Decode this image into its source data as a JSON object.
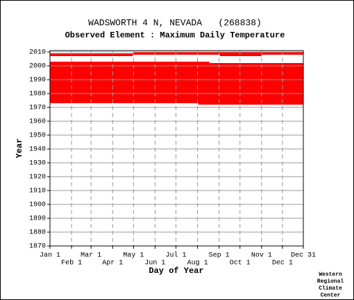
{
  "chart_data": {
    "type": "availability",
    "title": "WADSWORTH 4 N, NEVADA   (268838)",
    "subtitle": "Observed Element : Maximum Daily Temperature",
    "x_label": "Day of Year",
    "y_label": "Year",
    "credit": [
      "Western",
      "Regional",
      "Climate",
      "Center"
    ],
    "color": "#ff0000",
    "xlim": [
      1,
      365
    ],
    "ylim": [
      1870,
      2011
    ],
    "xticks": [
      {
        "value": 1,
        "label": "Jan 1"
      },
      {
        "value": 32,
        "label": "Feb 1"
      },
      {
        "value": 60,
        "label": "Mar 1"
      },
      {
        "value": 91,
        "label": "Apr 1"
      },
      {
        "value": 121,
        "label": "May 1"
      },
      {
        "value": 152,
        "label": "Jun 1"
      },
      {
        "value": 182,
        "label": "Jul 1"
      },
      {
        "value": 213,
        "label": "Aug 1"
      },
      {
        "value": 244,
        "label": "Sep 1"
      },
      {
        "value": 274,
        "label": "Oct 1"
      },
      {
        "value": 305,
        "label": "Nov 1"
      },
      {
        "value": 335,
        "label": "Dec 1"
      },
      {
        "value": 365,
        "label": "Dec 31"
      }
    ],
    "yticks": [
      1870,
      1880,
      1890,
      1900,
      1910,
      1920,
      1930,
      1940,
      1950,
      1960,
      1970,
      1980,
      1990,
      2000,
      2010
    ],
    "spans": [
      {
        "years": [
          1973,
          2002
        ],
        "days": [
          1,
          365
        ]
      },
      {
        "years": [
          1972,
          1973
        ],
        "days": [
          214,
          365
        ]
      },
      {
        "years": [
          2002,
          2003
        ],
        "days": [
          1,
          230
        ]
      },
      {
        "years": [
          2007,
          2008
        ],
        "days": [
          1,
          120
        ]
      },
      {
        "years": [
          2007,
          2008
        ],
        "days": [
          245,
          305
        ]
      },
      {
        "years": [
          2008,
          2009
        ],
        "days": [
          1,
          365
        ]
      },
      {
        "years": [
          2009,
          2010
        ],
        "days": [
          121,
          365
        ]
      }
    ]
  }
}
